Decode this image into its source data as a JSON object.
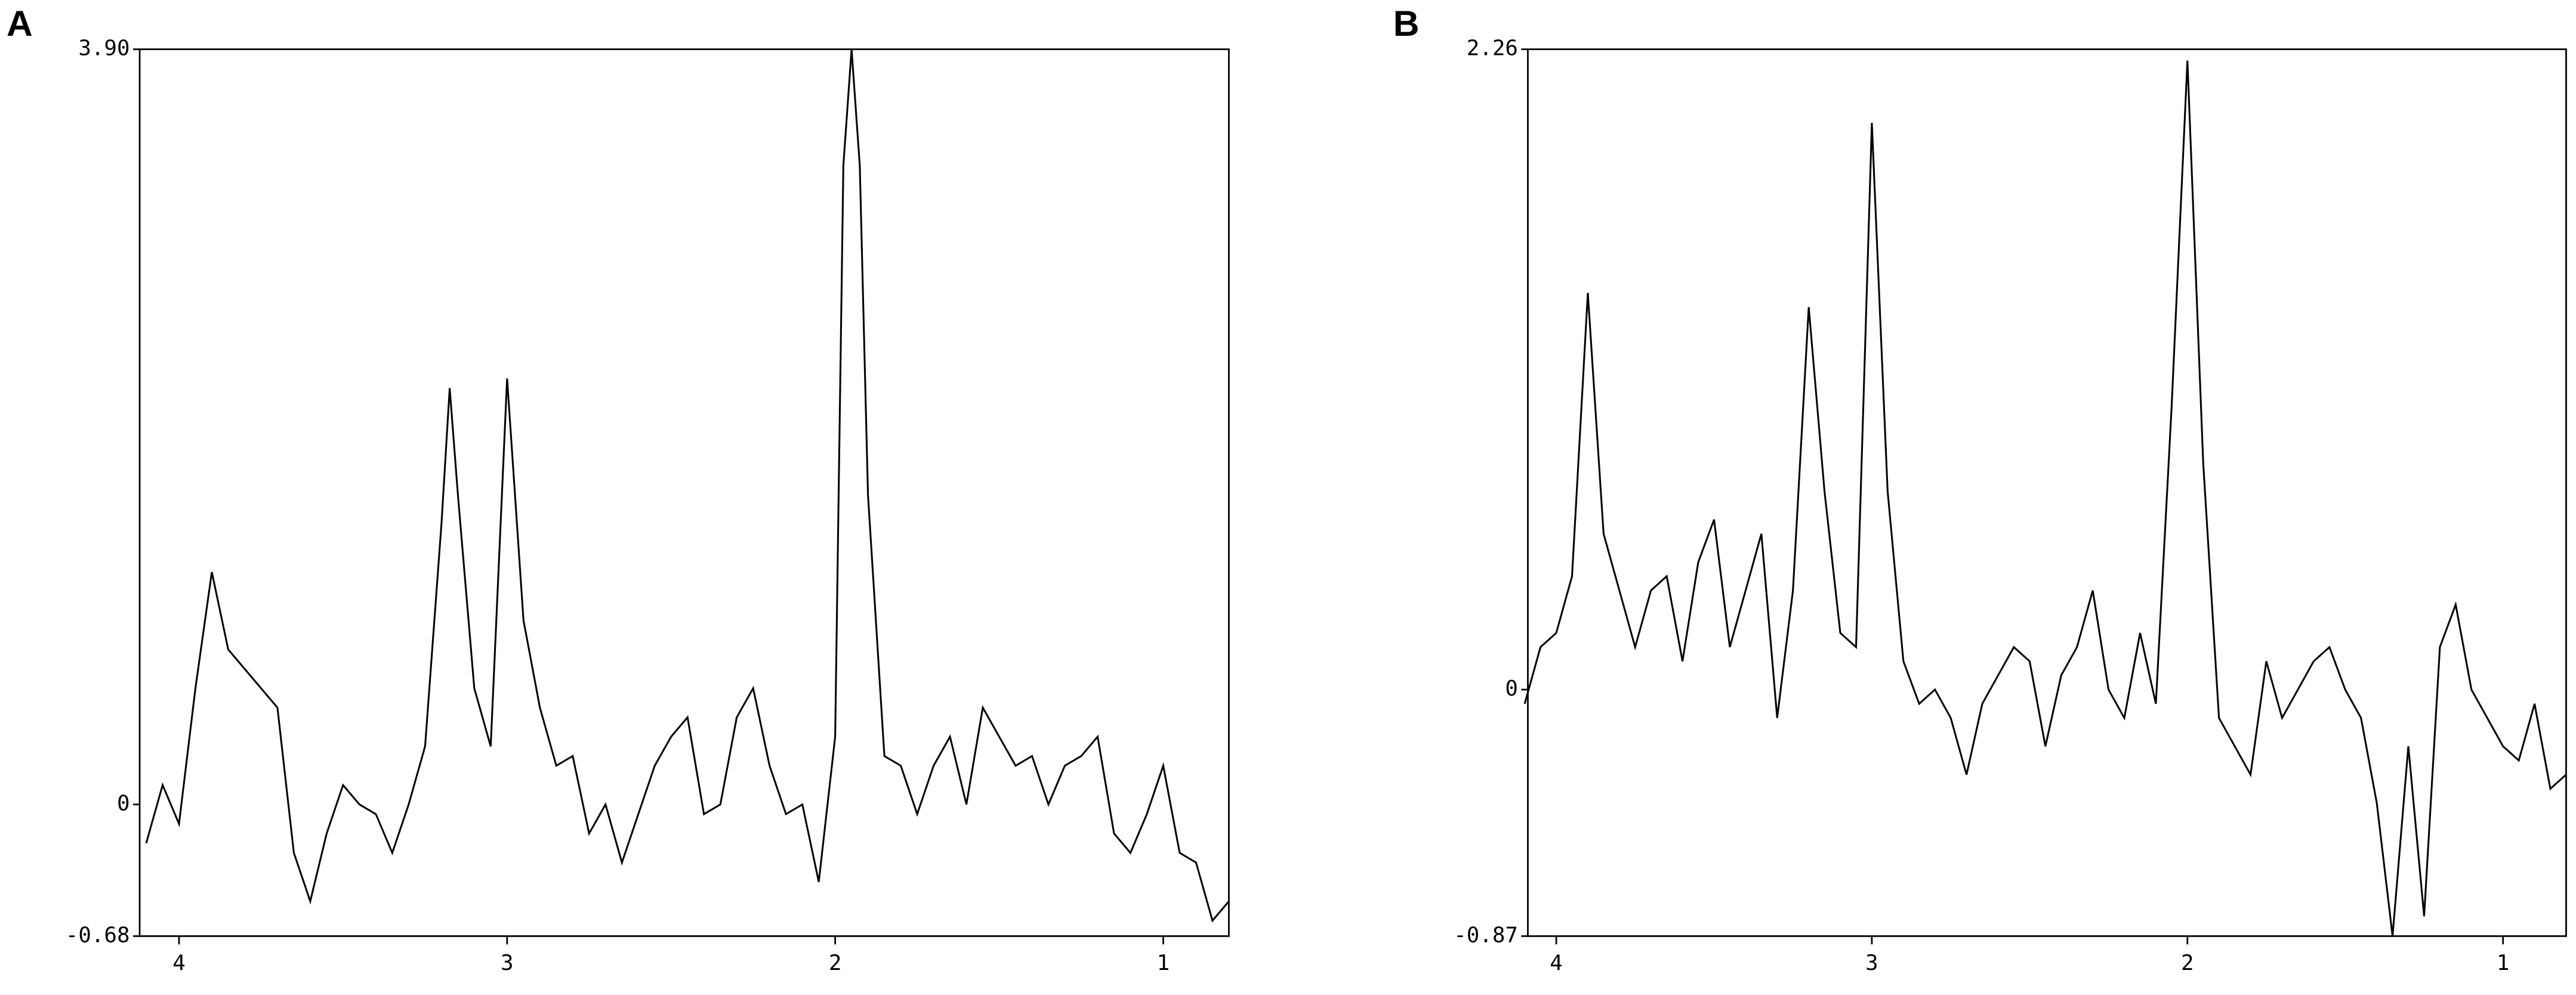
{
  "chart_data": [
    {
      "type": "line",
      "label": "A",
      "color": "#000000",
      "xlim": [
        4.12,
        0.8
      ],
      "xticks": [
        4,
        3,
        2,
        1
      ],
      "ylim": [
        -0.68,
        3.9
      ],
      "yticks": [
        -0.68,
        0,
        {
          "value": 3.9,
          "label": "3.90"
        }
      ],
      "x": [
        4.1,
        4.05,
        4.0,
        3.95,
        3.9,
        3.85,
        3.8,
        3.75,
        3.7,
        3.65,
        3.6,
        3.55,
        3.5,
        3.45,
        3.4,
        3.35,
        3.3,
        3.25,
        3.2,
        3.175,
        3.15,
        3.1,
        3.05,
        3.0,
        2.95,
        2.9,
        2.85,
        2.8,
        2.75,
        2.7,
        2.65,
        2.6,
        2.55,
        2.5,
        2.45,
        2.4,
        2.35,
        2.3,
        2.25,
        2.2,
        2.15,
        2.1,
        2.05,
        2.0,
        1.975,
        1.95,
        1.925,
        1.9,
        1.85,
        1.8,
        1.75,
        1.7,
        1.65,
        1.6,
        1.55,
        1.5,
        1.45,
        1.4,
        1.35,
        1.3,
        1.25,
        1.2,
        1.15,
        1.1,
        1.05,
        1.0,
        0.95,
        0.9,
        0.85,
        0.8
      ],
      "values": [
        -0.2,
        0.1,
        -0.1,
        0.6,
        1.2,
        0.8,
        0.7,
        0.6,
        0.5,
        -0.25,
        -0.5,
        -0.15,
        0.1,
        0.0,
        -0.05,
        -0.25,
        0.0,
        0.3,
        1.45,
        2.15,
        1.6,
        0.6,
        0.3,
        2.2,
        0.95,
        0.5,
        0.2,
        0.25,
        -0.15,
        0.0,
        -0.3,
        -0.05,
        0.2,
        0.35,
        0.45,
        -0.05,
        0.0,
        0.45,
        0.6,
        0.2,
        -0.05,
        0.0,
        -0.4,
        0.35,
        3.3,
        3.9,
        3.3,
        1.6,
        0.25,
        0.2,
        -0.05,
        0.2,
        0.35,
        0.0,
        0.5,
        0.35,
        0.2,
        0.25,
        0.0,
        0.2,
        0.25,
        0.35,
        -0.15,
        -0.25,
        -0.05,
        0.2,
        -0.25,
        -0.3,
        -0.6,
        -0.5
      ]
    },
    {
      "type": "line",
      "label": "B",
      "color": "#000000",
      "xlim": [
        4.09,
        0.8
      ],
      "xticks": [
        4,
        3,
        2,
        1
      ],
      "ylim": [
        -0.87,
        2.26
      ],
      "yticks": [
        -0.87,
        0,
        2.26
      ],
      "x": [
        4.1,
        4.05,
        4.0,
        3.95,
        3.9,
        3.85,
        3.8,
        3.75,
        3.7,
        3.65,
        3.6,
        3.55,
        3.5,
        3.45,
        3.4,
        3.35,
        3.3,
        3.25,
        3.2,
        3.15,
        3.1,
        3.05,
        3.0,
        2.95,
        2.9,
        2.85,
        2.8,
        2.75,
        2.7,
        2.65,
        2.6,
        2.55,
        2.5,
        2.45,
        2.4,
        2.35,
        2.3,
        2.25,
        2.2,
        2.15,
        2.1,
        2.05,
        2.0,
        1.95,
        1.9,
        1.85,
        1.8,
        1.75,
        1.7,
        1.65,
        1.6,
        1.55,
        1.5,
        1.45,
        1.4,
        1.35,
        1.3,
        1.25,
        1.2,
        1.15,
        1.1,
        1.05,
        1.0,
        0.95,
        0.9,
        0.85,
        0.8
      ],
      "values": [
        -0.05,
        0.15,
        0.2,
        0.4,
        1.4,
        0.55,
        0.35,
        0.15,
        0.35,
        0.4,
        0.1,
        0.45,
        0.6,
        0.15,
        0.35,
        0.55,
        -0.1,
        0.35,
        1.35,
        0.7,
        0.2,
        0.15,
        2.0,
        0.7,
        0.1,
        -0.05,
        0.0,
        -0.1,
        -0.3,
        -0.05,
        0.05,
        0.15,
        0.1,
        -0.2,
        0.05,
        0.15,
        0.35,
        0.0,
        -0.1,
        0.2,
        -0.05,
        1.0,
        2.22,
        0.8,
        -0.1,
        -0.2,
        -0.3,
        0.1,
        -0.1,
        0.0,
        0.1,
        0.15,
        0.0,
        -0.1,
        -0.4,
        -0.87,
        -0.2,
        -0.8,
        0.15,
        0.3,
        0.0,
        -0.1,
        -0.2,
        -0.25,
        -0.05,
        -0.35,
        -0.3
      ]
    }
  ]
}
